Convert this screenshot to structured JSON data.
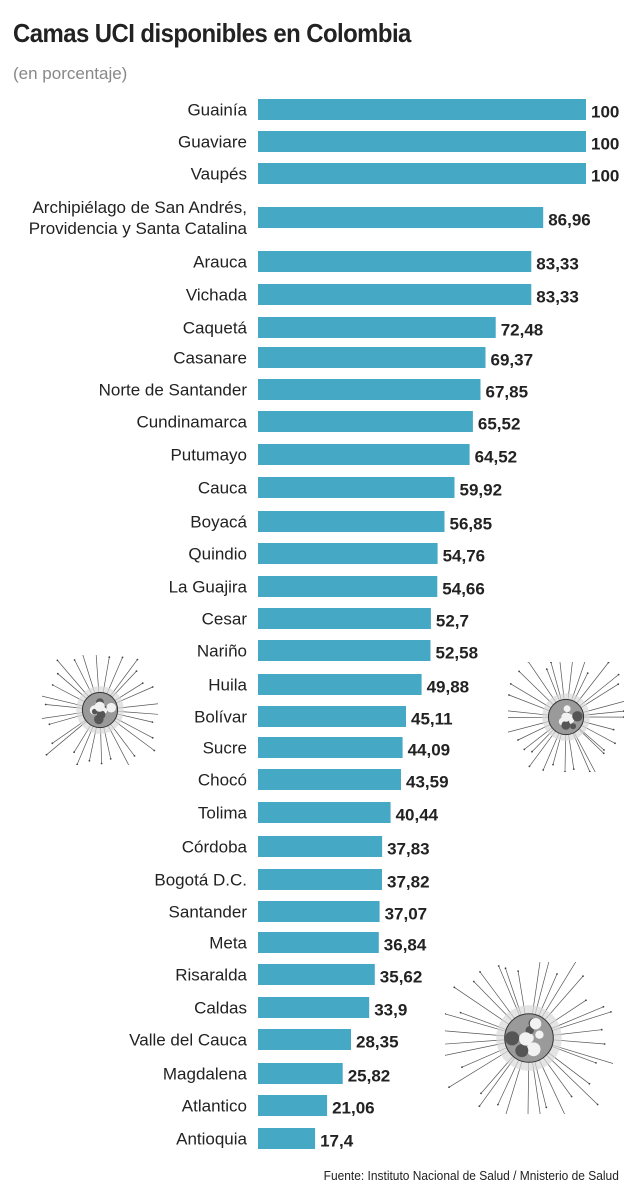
{
  "title": "Camas UCI disponibles en Colombia",
  "subtitle": "(en porcentaje)",
  "source": "Fuente: Instituto Nacional de Salud / Mnisterio de Salud",
  "colors": {
    "bar": "#45a9c6",
    "label": "#222222",
    "value": "#222222"
  },
  "decorations": [
    "virus-icon",
    "virus-icon",
    "virus-icon"
  ],
  "chart_data": {
    "type": "bar",
    "orientation": "horizontal",
    "title": "Camas UCI disponibles en Colombia",
    "subtitle": "(en porcentaje)",
    "xlim": [
      0,
      100
    ],
    "grid": false,
    "legend": "none",
    "categories": [
      "Guainía",
      "Guaviare",
      "Vaupés",
      "Archipiélago de San Andrés,\nProvidencia y Santa Catalina",
      "Arauca",
      "Vichada",
      "Caquetá",
      "Casanare",
      "Norte de Santander",
      "Cundinamarca",
      "Putumayo",
      "Cauca",
      "Boyacá",
      "Quindio",
      "La Guajira",
      "Cesar",
      "Nariño",
      "Huila",
      "Bolívar",
      "Sucre",
      "Chocó",
      "Tolima",
      "Córdoba",
      "Bogotá D.C.",
      "Santander",
      "Meta",
      "Risaralda",
      "Caldas",
      "Valle del Cauca",
      "Magdalena",
      "Atlantico",
      "Antioquia"
    ],
    "values": [
      100,
      100,
      100,
      86.96,
      83.33,
      83.33,
      72.48,
      69.37,
      67.85,
      65.52,
      64.52,
      59.92,
      56.85,
      54.76,
      54.66,
      52.7,
      52.58,
      49.88,
      45.11,
      44.09,
      43.59,
      40.44,
      37.83,
      37.82,
      37.07,
      36.84,
      35.62,
      33.9,
      28.35,
      25.82,
      21.06,
      17.4
    ],
    "value_labels": [
      "100",
      "100",
      "100",
      "86,96",
      "83,33",
      "83,33",
      "72,48",
      "69,37",
      "67,85",
      "65,52",
      "64,52",
      "59,92",
      "56,85",
      "54,76",
      "54,66",
      "52,7",
      "52,58",
      "49,88",
      "45,11",
      "44,09",
      "43,59",
      "40,44",
      "37,83",
      "37,82",
      "37,07",
      "36,84",
      "35,62",
      "33,9",
      "28,35",
      "25,82",
      "21,06",
      "17,4"
    ]
  }
}
